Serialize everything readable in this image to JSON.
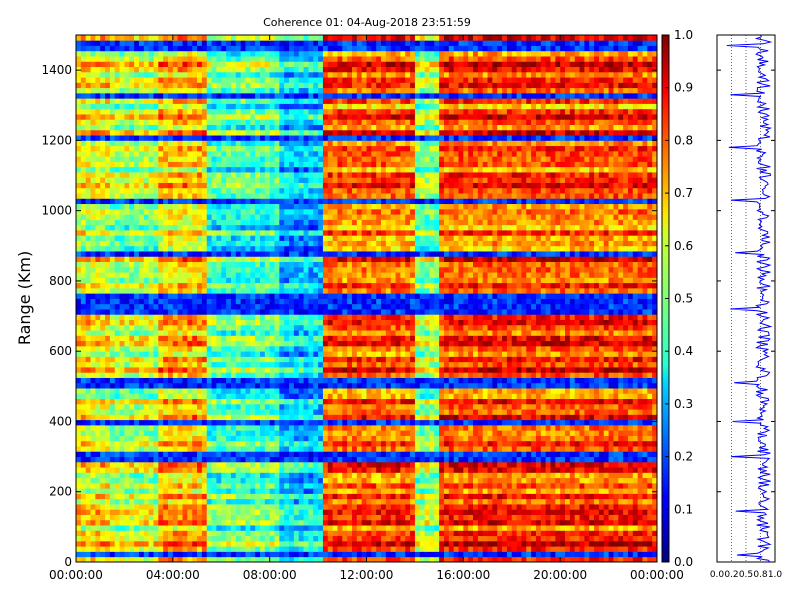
{
  "chart_data": [
    {
      "type": "heatmap",
      "title": "Coherence 01: 04-Aug-2018 23:51:59",
      "xlabel": "",
      "ylabel": "Range (Km)",
      "ylim": [
        0,
        1500
      ],
      "xlim_hours": [
        0,
        24
      ],
      "x_tick_labels": [
        "00:00:00",
        "04:00:00",
        "08:00:00",
        "12:00:00",
        "16:00:00",
        "20:00:00",
        "00:00:00"
      ],
      "y_tick_values": [
        0,
        200,
        400,
        600,
        800,
        1000,
        1200,
        1400
      ],
      "colormap": "jet",
      "colorbar": {
        "range": [
          0,
          1
        ],
        "tick_labels": [
          "0.0",
          "0.1",
          "0.2",
          "0.3",
          "0.4",
          "0.5",
          "0.6",
          "0.7",
          "0.8",
          "0.9",
          "1.0"
        ]
      },
      "time_profile": [
        {
          "start_h": 0.0,
          "end_h": 1.5,
          "coherence": 0.62
        },
        {
          "start_h": 1.5,
          "end_h": 3.5,
          "coherence": 0.55
        },
        {
          "start_h": 3.5,
          "end_h": 5.5,
          "coherence": 0.68
        },
        {
          "start_h": 5.5,
          "end_h": 8.5,
          "coherence": 0.45
        },
        {
          "start_h": 8.5,
          "end_h": 10.3,
          "coherence": 0.33
        },
        {
          "start_h": 10.3,
          "end_h": 14.0,
          "coherence": 0.78
        },
        {
          "start_h": 14.0,
          "end_h": 15.0,
          "coherence": 0.52
        },
        {
          "start_h": 15.0,
          "end_h": 24.0,
          "coherence": 0.8
        }
      ],
      "low_coherence_bands_km": [
        20,
        300,
        400,
        510,
        720,
        750,
        880,
        1030,
        1210,
        1330,
        1470
      ]
    },
    {
      "type": "line",
      "title": "",
      "xlabel": "",
      "ylabel": "",
      "xlim": [
        0,
        1
      ],
      "ylim": [
        0,
        1500
      ],
      "x_tick_labels": [
        "0.0",
        "0.2",
        "0.5",
        "0.8",
        "1.0"
      ],
      "x_tick_values": [
        0.0,
        0.25,
        0.5,
        0.75,
        1.0
      ],
      "series": [
        {
          "color": "#0000ff",
          "mean_coherence": 0.8,
          "dips_km": [
            20,
            145,
            300,
            400,
            510,
            720,
            880,
            1030,
            1180,
            1330,
            1470
          ]
        }
      ]
    }
  ]
}
